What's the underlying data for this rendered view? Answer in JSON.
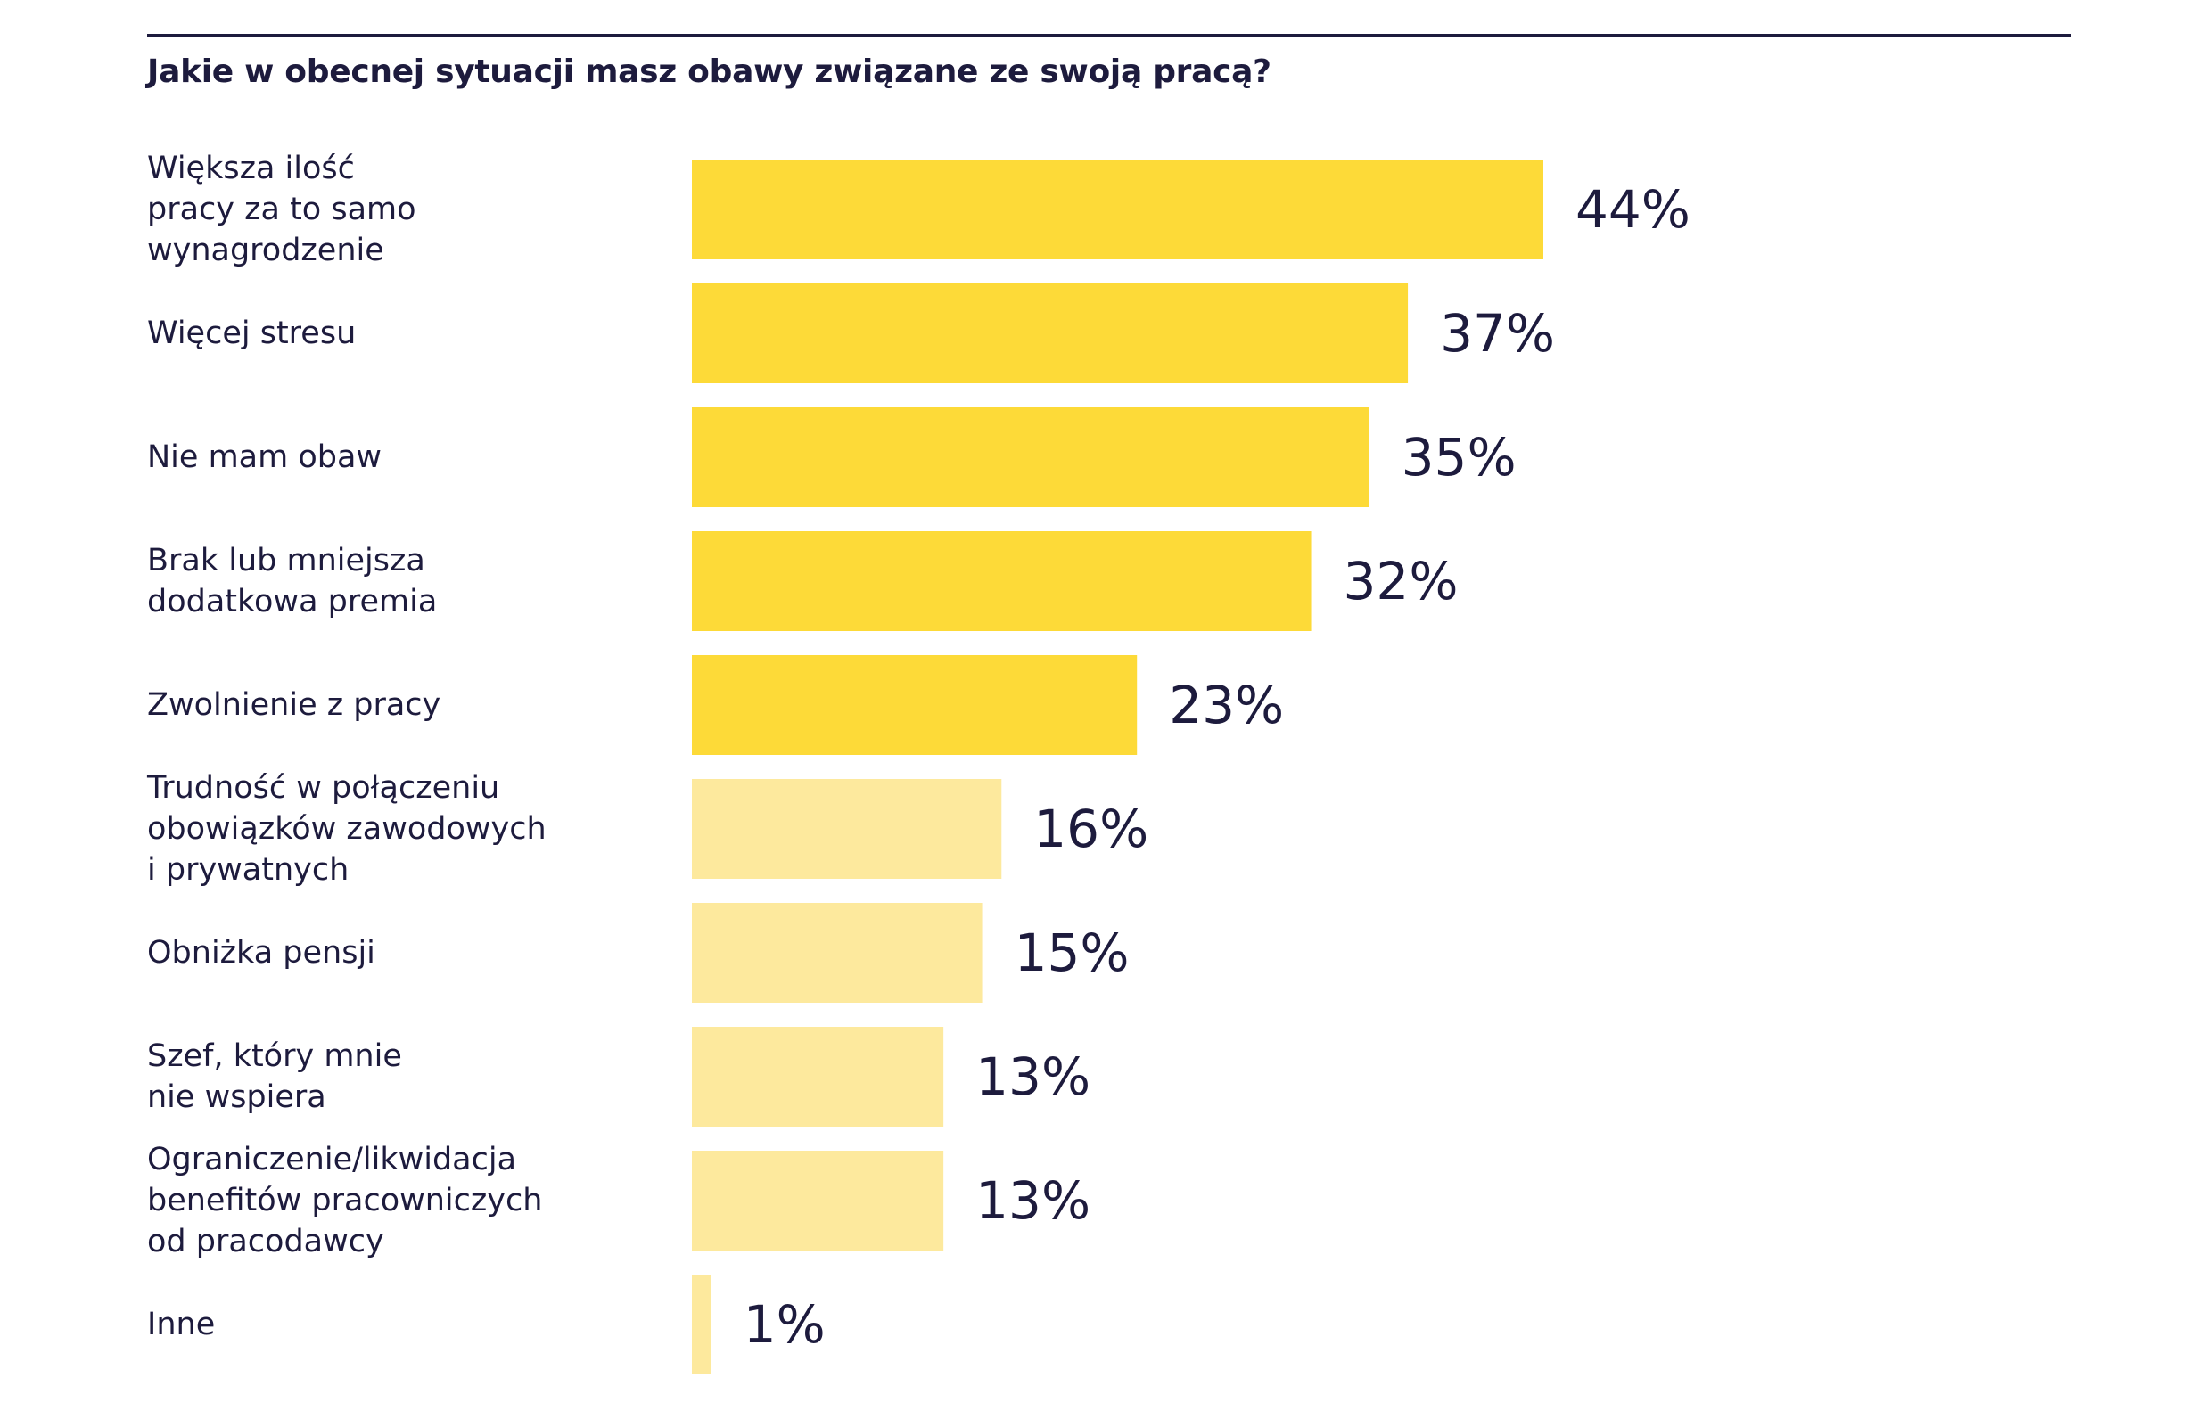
{
  "chart_data": {
    "type": "bar",
    "orientation": "horizontal",
    "title": "Jakie w obecnej sytuacji masz obawy związane ze swoją pracą?",
    "categories": [
      "Większa ilość pracy za to samo wynagrodzenie",
      "Więcej stresu",
      "Nie mam obaw",
      "Brak lub mniejsza dodatkowa premia",
      "Zwolnienie z pracy",
      "Trudność w połączeniu obowiązków zawodowych i prywatnych",
      "Obniżka pensji",
      "Szef, który mnie nie wspiera",
      "Ograniczenie/likwidacja benefitów pracowniczych od pracodawcy",
      "Inne"
    ],
    "category_lines": [
      [
        "Większa ilość",
        "pracy za to samo",
        "wynagrodzenie"
      ],
      [
        "Więcej stresu"
      ],
      [
        "Nie mam obaw"
      ],
      [
        "Brak lub mniejsza",
        "dodatkowa premia"
      ],
      [
        "Zwolnienie z pracy"
      ],
      [
        "Trudność w połączeniu",
        "obowiązków zawodowych",
        "i prywatnych"
      ],
      [
        "Obniżka pensji"
      ],
      [
        "Szef, który mnie",
        "nie wspiera"
      ],
      [
        "Ograniczenie/likwidacja",
        "benefitów pracowniczych",
        "od pracodawcy"
      ],
      [
        "Inne"
      ]
    ],
    "values": [
      44,
      37,
      35,
      32,
      23,
      16,
      15,
      13,
      13,
      1
    ],
    "value_labels": [
      "44%",
      "37%",
      "35%",
      "32%",
      "23%",
      "16%",
      "15%",
      "13%",
      "13%",
      "1%"
    ],
    "unit": "%",
    "highlight_count": 5,
    "xlim": [
      0,
      44
    ],
    "grid": false,
    "legend": "none",
    "colors": {
      "highlight": "#fdda38",
      "muted": "#fde99d",
      "text": "#1d1b3d",
      "rule": "#1d1b3d"
    }
  }
}
